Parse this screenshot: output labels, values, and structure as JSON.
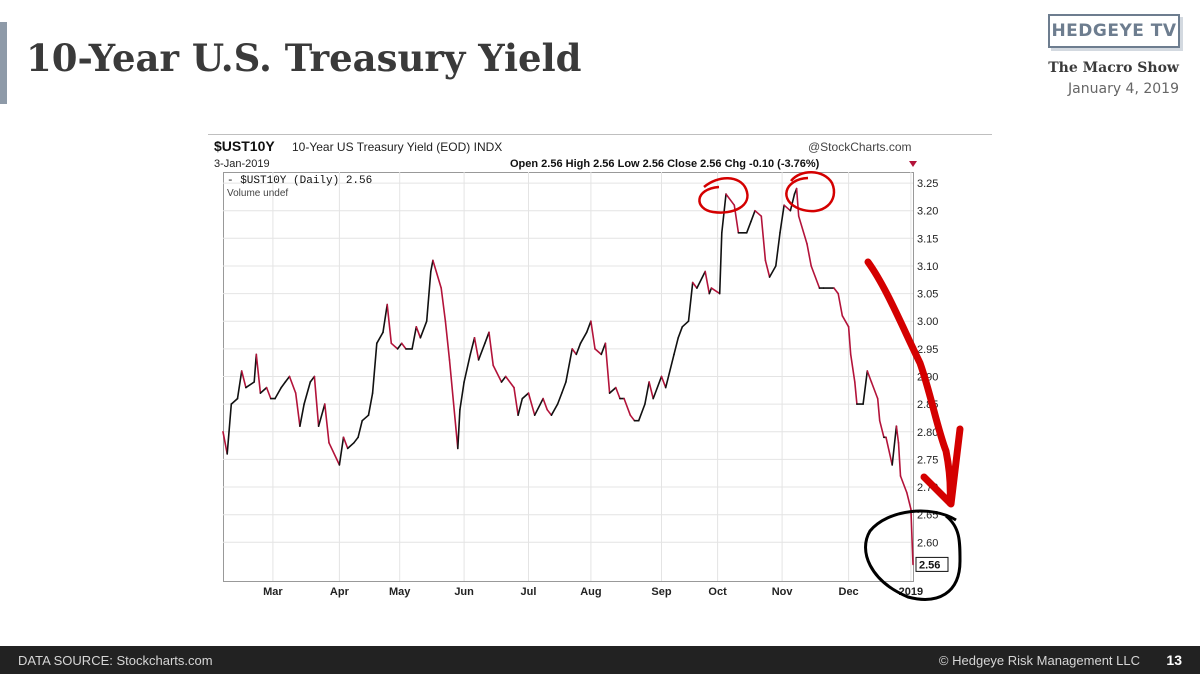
{
  "slide": {
    "title": "10-Year U.S. Treasury Yield",
    "logo_text": "HEDGEYE TV",
    "show_name": "The Macro Show",
    "show_date": "January 4, 2019"
  },
  "footer": {
    "source": "DATA SOURCE: Stockcharts.com",
    "copyright": "© Hedgeye Risk Management LLC",
    "page_number": "13"
  },
  "chart_data": {
    "type": "line",
    "title": "$UST10Y",
    "subtitle": "10-Year US Treasury Yield (EOD) INDX",
    "date": "3-Jan-2019",
    "watermark": "@StockCharts.com",
    "quote_line": "Open 2.56  High 2.56  Low 2.56  Close 2.56  Chg -0.10 (-3.76%)",
    "legend": [
      "- $UST10Y (Daily) 2.56",
      "Volume undef"
    ],
    "last_value_label": "2.56",
    "ylim": [
      2.53,
      3.27
    ],
    "y_ticks": [
      2.6,
      2.65,
      2.7,
      2.75,
      2.8,
      2.85,
      2.9,
      2.95,
      3.0,
      3.05,
      3.1,
      3.15,
      3.2,
      3.25
    ],
    "y_tick_labels": [
      "2.60",
      "2.65",
      "2.70",
      "2.75",
      "2.80",
      "2.85",
      "2.90",
      "2.95",
      "3.00",
      "3.05",
      "3.10",
      "3.15",
      "3.20",
      "3.25"
    ],
    "x_ticks": [
      "Mar",
      "Apr",
      "May",
      "Jun",
      "Jul",
      "Aug",
      "Sep",
      "Oct",
      "Nov",
      "Dec",
      "2019"
    ],
    "x_tick_dates": [
      "2018-03-01",
      "2018-04-02",
      "2018-05-01",
      "2018-06-01",
      "2018-07-02",
      "2018-08-01",
      "2018-09-04",
      "2018-10-01",
      "2018-11-01",
      "2018-12-03",
      "2019-01-02"
    ],
    "x_range": [
      "2018-02-05",
      "2019-01-03"
    ],
    "up_color": "#111111",
    "down_color": "#b3133a",
    "annotation_color": "#d40000",
    "series": [
      {
        "name": "$UST10Y (Daily)",
        "points": [
          [
            "2018-02-05",
            2.8
          ],
          [
            "2018-02-07",
            2.76
          ],
          [
            "2018-02-09",
            2.85
          ],
          [
            "2018-02-12",
            2.86
          ],
          [
            "2018-02-14",
            2.91
          ],
          [
            "2018-02-16",
            2.88
          ],
          [
            "2018-02-20",
            2.89
          ],
          [
            "2018-02-21",
            2.94
          ],
          [
            "2018-02-23",
            2.87
          ],
          [
            "2018-02-26",
            2.88
          ],
          [
            "2018-02-28",
            2.86
          ],
          [
            "2018-03-02",
            2.86
          ],
          [
            "2018-03-05",
            2.88
          ],
          [
            "2018-03-07",
            2.89
          ],
          [
            "2018-03-09",
            2.9
          ],
          [
            "2018-03-12",
            2.87
          ],
          [
            "2018-03-14",
            2.81
          ],
          [
            "2018-03-16",
            2.85
          ],
          [
            "2018-03-19",
            2.89
          ],
          [
            "2018-03-21",
            2.9
          ],
          [
            "2018-03-23",
            2.81
          ],
          [
            "2018-03-26",
            2.85
          ],
          [
            "2018-03-28",
            2.78
          ],
          [
            "2018-04-02",
            2.74
          ],
          [
            "2018-04-04",
            2.79
          ],
          [
            "2018-04-06",
            2.77
          ],
          [
            "2018-04-09",
            2.78
          ],
          [
            "2018-04-11",
            2.79
          ],
          [
            "2018-04-13",
            2.82
          ],
          [
            "2018-04-16",
            2.83
          ],
          [
            "2018-04-18",
            2.87
          ],
          [
            "2018-04-20",
            2.96
          ],
          [
            "2018-04-23",
            2.98
          ],
          [
            "2018-04-25",
            3.03
          ],
          [
            "2018-04-27",
            2.96
          ],
          [
            "2018-04-30",
            2.95
          ],
          [
            "2018-05-02",
            2.96
          ],
          [
            "2018-05-04",
            2.95
          ],
          [
            "2018-05-07",
            2.95
          ],
          [
            "2018-05-09",
            2.99
          ],
          [
            "2018-05-11",
            2.97
          ],
          [
            "2018-05-14",
            3.0
          ],
          [
            "2018-05-16",
            3.09
          ],
          [
            "2018-05-17",
            3.11
          ],
          [
            "2018-05-21",
            3.06
          ],
          [
            "2018-05-23",
            3.0
          ],
          [
            "2018-05-25",
            2.93
          ],
          [
            "2018-05-29",
            2.77
          ],
          [
            "2018-05-30",
            2.84
          ],
          [
            "2018-06-01",
            2.89
          ],
          [
            "2018-06-04",
            2.94
          ],
          [
            "2018-06-06",
            2.97
          ],
          [
            "2018-06-08",
            2.93
          ],
          [
            "2018-06-11",
            2.96
          ],
          [
            "2018-06-13",
            2.98
          ],
          [
            "2018-06-15",
            2.92
          ],
          [
            "2018-06-19",
            2.89
          ],
          [
            "2018-06-21",
            2.9
          ],
          [
            "2018-06-25",
            2.88
          ],
          [
            "2018-06-27",
            2.83
          ],
          [
            "2018-06-29",
            2.86
          ],
          [
            "2018-07-02",
            2.87
          ],
          [
            "2018-07-05",
            2.83
          ],
          [
            "2018-07-09",
            2.86
          ],
          [
            "2018-07-11",
            2.84
          ],
          [
            "2018-07-13",
            2.83
          ],
          [
            "2018-07-16",
            2.85
          ],
          [
            "2018-07-18",
            2.87
          ],
          [
            "2018-07-20",
            2.89
          ],
          [
            "2018-07-23",
            2.95
          ],
          [
            "2018-07-25",
            2.94
          ],
          [
            "2018-07-27",
            2.96
          ],
          [
            "2018-07-30",
            2.98
          ],
          [
            "2018-08-01",
            3.0
          ],
          [
            "2018-08-03",
            2.95
          ],
          [
            "2018-08-06",
            2.94
          ],
          [
            "2018-08-08",
            2.96
          ],
          [
            "2018-08-10",
            2.87
          ],
          [
            "2018-08-13",
            2.88
          ],
          [
            "2018-08-15",
            2.86
          ],
          [
            "2018-08-17",
            2.86
          ],
          [
            "2018-08-20",
            2.83
          ],
          [
            "2018-08-22",
            2.82
          ],
          [
            "2018-08-24",
            2.82
          ],
          [
            "2018-08-27",
            2.85
          ],
          [
            "2018-08-29",
            2.89
          ],
          [
            "2018-08-31",
            2.86
          ],
          [
            "2018-09-04",
            2.9
          ],
          [
            "2018-09-06",
            2.88
          ],
          [
            "2018-09-10",
            2.94
          ],
          [
            "2018-09-12",
            2.97
          ],
          [
            "2018-09-14",
            2.99
          ],
          [
            "2018-09-17",
            3.0
          ],
          [
            "2018-09-19",
            3.07
          ],
          [
            "2018-09-21",
            3.06
          ],
          [
            "2018-09-25",
            3.09
          ],
          [
            "2018-09-27",
            3.05
          ],
          [
            "2018-09-28",
            3.06
          ],
          [
            "2018-10-02",
            3.05
          ],
          [
            "2018-10-03",
            3.16
          ],
          [
            "2018-10-05",
            3.23
          ],
          [
            "2018-10-09",
            3.21
          ],
          [
            "2018-10-11",
            3.16
          ],
          [
            "2018-10-15",
            3.16
          ],
          [
            "2018-10-17",
            3.18
          ],
          [
            "2018-10-19",
            3.2
          ],
          [
            "2018-10-22",
            3.19
          ],
          [
            "2018-10-24",
            3.11
          ],
          [
            "2018-10-26",
            3.08
          ],
          [
            "2018-10-29",
            3.1
          ],
          [
            "2018-10-31",
            3.16
          ],
          [
            "2018-11-02",
            3.21
          ],
          [
            "2018-11-05",
            3.2
          ],
          [
            "2018-11-07",
            3.23
          ],
          [
            "2018-11-08",
            3.24
          ],
          [
            "2018-11-09",
            3.19
          ],
          [
            "2018-11-13",
            3.14
          ],
          [
            "2018-11-15",
            3.1
          ],
          [
            "2018-11-19",
            3.06
          ],
          [
            "2018-11-21",
            3.06
          ],
          [
            "2018-11-26",
            3.06
          ],
          [
            "2018-11-28",
            3.05
          ],
          [
            "2018-11-30",
            3.01
          ],
          [
            "2018-12-03",
            2.99
          ],
          [
            "2018-12-04",
            2.94
          ],
          [
            "2018-12-06",
            2.89
          ],
          [
            "2018-12-07",
            2.85
          ],
          [
            "2018-12-10",
            2.85
          ],
          [
            "2018-12-12",
            2.91
          ],
          [
            "2018-12-14",
            2.89
          ],
          [
            "2018-12-17",
            2.86
          ],
          [
            "2018-12-18",
            2.82
          ],
          [
            "2018-12-20",
            2.79
          ],
          [
            "2018-12-21",
            2.79
          ],
          [
            "2018-12-24",
            2.74
          ],
          [
            "2018-12-26",
            2.81
          ],
          [
            "2018-12-27",
            2.78
          ],
          [
            "2018-12-28",
            2.72
          ],
          [
            "2018-12-31",
            2.69
          ],
          [
            "2019-01-02",
            2.66
          ],
          [
            "2019-01-03",
            2.56
          ]
        ]
      }
    ]
  }
}
